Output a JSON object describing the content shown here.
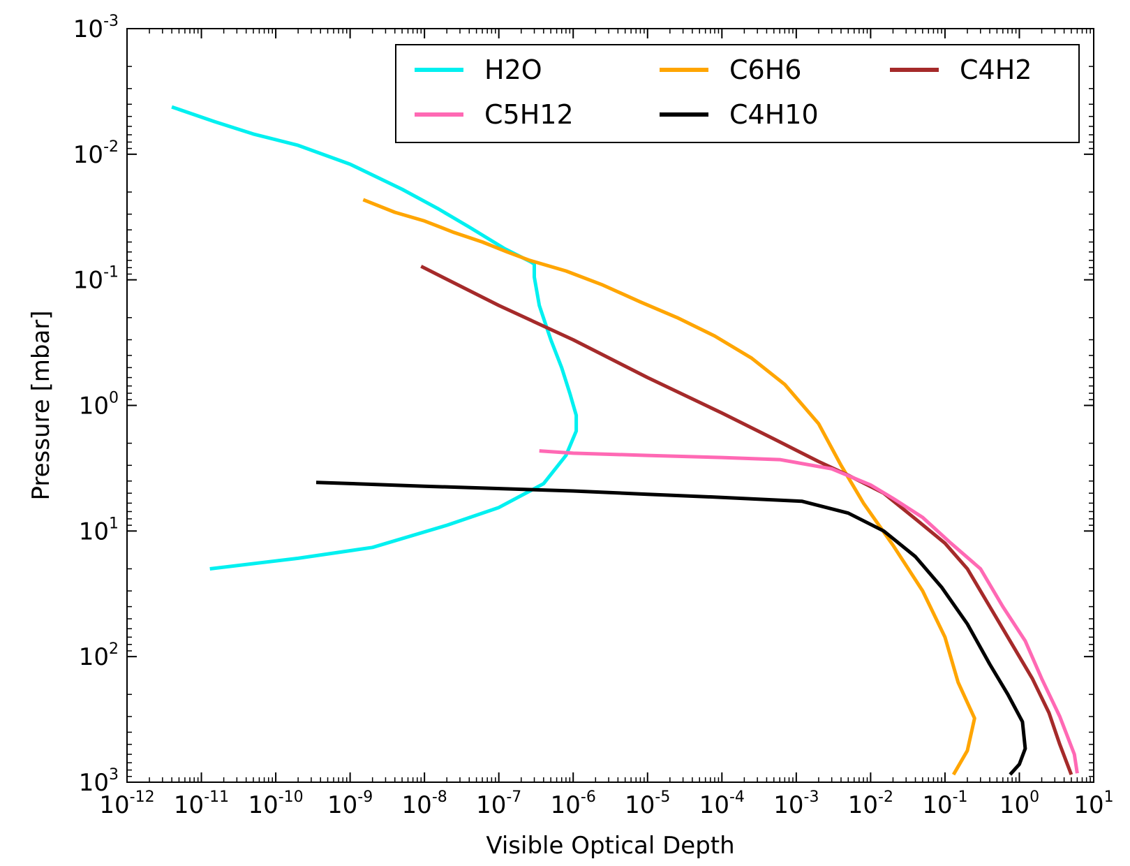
{
  "chart_data": {
    "type": "line",
    "title": "",
    "xlabel": "Visible Optical Depth",
    "ylabel": "Pressure [mbar]",
    "x_scale": "log",
    "y_scale": "log",
    "y_inverted": true,
    "xlim": [
      1e-12,
      10
    ],
    "ylim": [
      1000,
      0.001
    ],
    "x_ticks": [
      {
        "value": 1e-12,
        "base": "10",
        "exp": "-12"
      },
      {
        "value": 1e-11,
        "base": "10",
        "exp": "-11"
      },
      {
        "value": 1e-10,
        "base": "10",
        "exp": "-10"
      },
      {
        "value": 1e-09,
        "base": "10",
        "exp": "-9"
      },
      {
        "value": 1e-08,
        "base": "10",
        "exp": "-8"
      },
      {
        "value": 1e-07,
        "base": "10",
        "exp": "-7"
      },
      {
        "value": 1e-06,
        "base": "10",
        "exp": "-6"
      },
      {
        "value": 1e-05,
        "base": "10",
        "exp": "-5"
      },
      {
        "value": 0.0001,
        "base": "10",
        "exp": "-4"
      },
      {
        "value": 0.001,
        "base": "10",
        "exp": "-3"
      },
      {
        "value": 0.01,
        "base": "10",
        "exp": "-2"
      },
      {
        "value": 0.1,
        "base": "10",
        "exp": "-1"
      },
      {
        "value": 1,
        "base": "10",
        "exp": "0"
      },
      {
        "value": 10,
        "base": "10",
        "exp": "1"
      }
    ],
    "y_ticks": [
      {
        "value": 0.001,
        "base": "10",
        "exp": "-3"
      },
      {
        "value": 0.01,
        "base": "10",
        "exp": "-2"
      },
      {
        "value": 0.1,
        "base": "10",
        "exp": "-1"
      },
      {
        "value": 1,
        "base": "10",
        "exp": "0"
      },
      {
        "value": 10,
        "base": "10",
        "exp": "1"
      },
      {
        "value": 100,
        "base": "10",
        "exp": "2"
      },
      {
        "value": 1000,
        "base": "10",
        "exp": "3"
      }
    ],
    "legend_position": "top-right",
    "legend_columns": 3,
    "series": [
      {
        "name": "H2O",
        "color": "#00f0f0",
        "points": [
          [
            4e-12,
            0.0042
          ],
          [
            1.5e-11,
            0.0055
          ],
          [
            5e-11,
            0.0069
          ],
          [
            2e-10,
            0.0085
          ],
          [
            1e-09,
            0.012
          ],
          [
            5e-09,
            0.019
          ],
          [
            1.5e-08,
            0.027
          ],
          [
            4e-08,
            0.038
          ],
          [
            1.2e-07,
            0.0565
          ],
          [
            2.7e-07,
            0.072
          ],
          [
            3e-07,
            0.075
          ],
          [
            3e-07,
            0.095
          ],
          [
            3.5e-07,
            0.16
          ],
          [
            5e-07,
            0.3
          ],
          [
            7e-07,
            0.5
          ],
          [
            9e-07,
            0.8
          ],
          [
            1.1e-06,
            1.2
          ],
          [
            1.1e-06,
            1.6
          ],
          [
            8e-07,
            2.5
          ],
          [
            4e-07,
            4.2
          ],
          [
            1e-07,
            6.5
          ],
          [
            2e-08,
            9
          ],
          [
            2e-09,
            13.5
          ],
          [
            2e-10,
            16.5
          ],
          [
            1.3e-11,
            20
          ]
        ]
      },
      {
        "name": "C6H6",
        "color": "#ffa500",
        "points": [
          [
            1.5e-09,
            0.023
          ],
          [
            4e-09,
            0.029
          ],
          [
            1e-08,
            0.034
          ],
          [
            2.5e-08,
            0.042
          ],
          [
            6e-08,
            0.05
          ],
          [
            1.3e-07,
            0.06
          ],
          [
            2.6e-07,
            0.07
          ],
          [
            8e-07,
            0.085
          ],
          [
            2.5e-06,
            0.11
          ],
          [
            8e-06,
            0.15
          ],
          [
            2.5e-05,
            0.2
          ],
          [
            8e-05,
            0.28
          ],
          [
            0.00025,
            0.42
          ],
          [
            0.0007,
            0.68
          ],
          [
            0.002,
            1.4
          ],
          [
            0.004,
            3
          ],
          [
            0.008,
            6
          ],
          [
            0.02,
            13
          ],
          [
            0.05,
            30
          ],
          [
            0.1,
            70
          ],
          [
            0.15,
            160
          ],
          [
            0.25,
            310
          ],
          [
            0.2,
            560
          ],
          [
            0.13,
            870
          ]
        ]
      },
      {
        "name": "C4H2",
        "color": "#a52a2a",
        "points": [
          [
            9e-09,
            0.078
          ],
          [
            1e-07,
            0.16
          ],
          [
            1e-06,
            0.3
          ],
          [
            1e-05,
            0.6
          ],
          [
            0.0001,
            1.15
          ],
          [
            0.0005,
            1.85
          ],
          [
            0.002,
            2.8
          ],
          [
            0.005,
            3.6
          ],
          [
            0.015,
            5
          ],
          [
            0.04,
            8
          ],
          [
            0.1,
            12.5
          ],
          [
            0.2,
            20
          ],
          [
            0.4,
            40
          ],
          [
            0.8,
            80
          ],
          [
            1.5,
            150
          ],
          [
            2.5,
            280
          ],
          [
            3.5,
            500
          ],
          [
            5,
            870
          ]
        ]
      },
      {
        "name": "C5H12",
        "color": "#ff69b4",
        "points": [
          [
            3.5e-07,
            2.3
          ],
          [
            1e-06,
            2.4
          ],
          [
            1e-05,
            2.5
          ],
          [
            0.0001,
            2.6
          ],
          [
            0.0006,
            2.7
          ],
          [
            0.003,
            3.2
          ],
          [
            0.01,
            4.3
          ],
          [
            0.02,
            5.5
          ],
          [
            0.05,
            7.8
          ],
          [
            0.12,
            12.5
          ],
          [
            0.3,
            20
          ],
          [
            0.6,
            40
          ],
          [
            1.2,
            75
          ],
          [
            2,
            150
          ],
          [
            3.5,
            300
          ],
          [
            5.5,
            600
          ],
          [
            6,
            850
          ]
        ]
      },
      {
        "name": "C4H10",
        "color": "#000000",
        "points": [
          [
            3.5e-10,
            4.1
          ],
          [
            1e-08,
            4.4
          ],
          [
            1e-06,
            4.8
          ],
          [
            1e-05,
            5.1
          ],
          [
            0.0001,
            5.4
          ],
          [
            0.0012,
            5.8
          ],
          [
            0.005,
            7.2
          ],
          [
            0.015,
            10
          ],
          [
            0.04,
            16
          ],
          [
            0.09,
            28
          ],
          [
            0.2,
            55
          ],
          [
            0.4,
            115
          ],
          [
            0.7,
            200
          ],
          [
            1.1,
            330
          ],
          [
            1.2,
            540
          ],
          [
            1.0,
            720
          ],
          [
            0.75,
            870
          ]
        ]
      }
    ]
  }
}
